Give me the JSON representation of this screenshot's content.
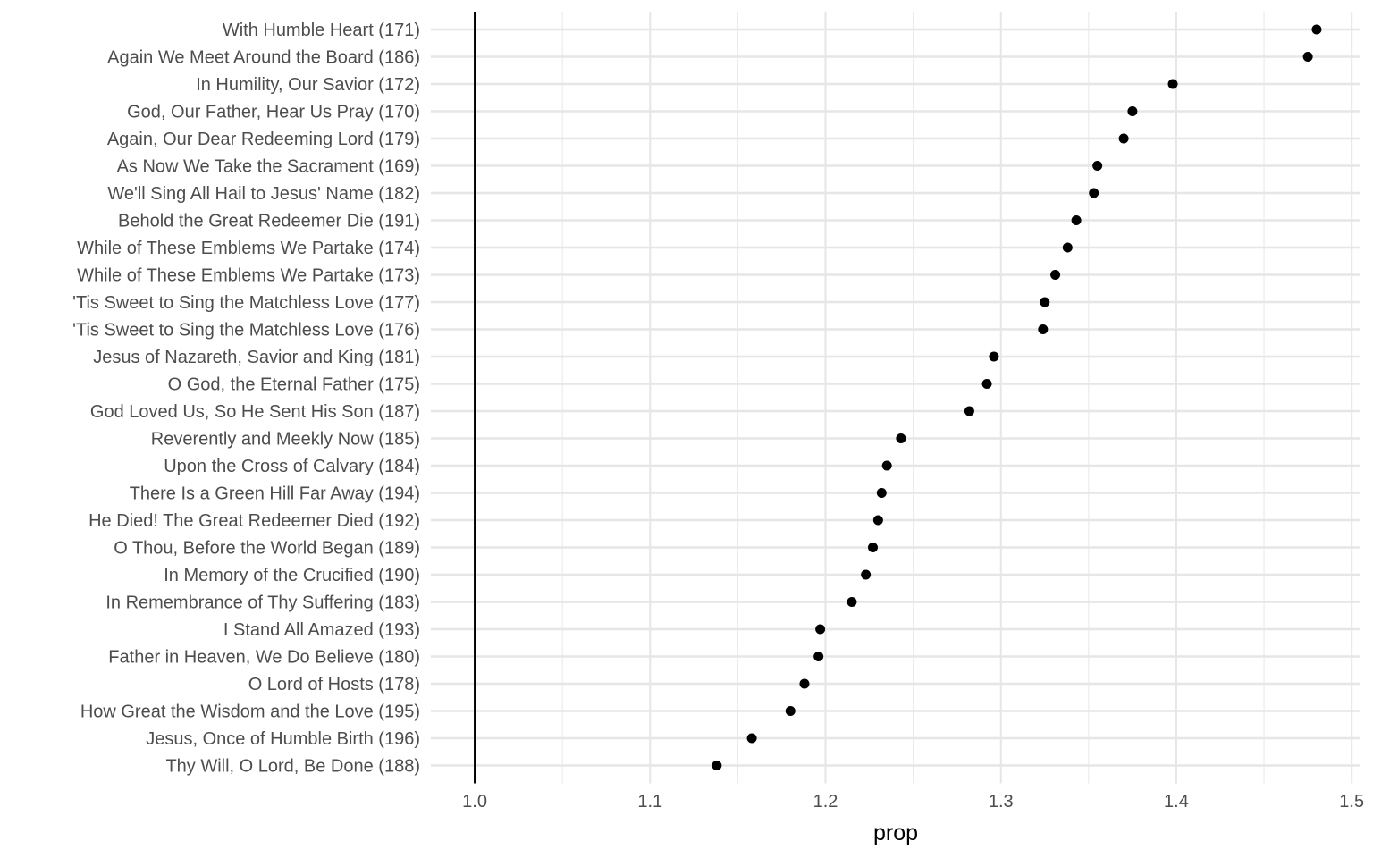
{
  "chart_data": {
    "type": "scatter",
    "title": "",
    "xlabel": "prop",
    "ylabel": "",
    "xlim": [
      0.975,
      1.505
    ],
    "xticks": [
      1.0,
      1.1,
      1.2,
      1.3,
      1.4,
      1.5
    ],
    "xtick_labels": [
      "1.0",
      "1.1",
      "1.2",
      "1.3",
      "1.4",
      "1.5"
    ],
    "reference_line_x": 1.0,
    "grid": true,
    "legend": "none",
    "point_color": "#000000",
    "categories": [
      "With Humble Heart (171)",
      "Again We Meet Around the Board (186)",
      "In Humility, Our Savior (172)",
      "God, Our Father, Hear Us Pray (170)",
      "Again, Our Dear Redeeming Lord (179)",
      "As Now We Take the Sacrament (169)",
      "We'll Sing All Hail to Jesus' Name (182)",
      "Behold the Great Redeemer Die (191)",
      "While of These Emblems We Partake (174)",
      "While of These Emblems We Partake (173)",
      "'Tis Sweet to Sing the Matchless Love (177)",
      "'Tis Sweet to Sing the Matchless Love (176)",
      "Jesus of Nazareth, Savior and King (181)",
      "O God, the Eternal Father (175)",
      "God Loved Us, So He Sent His Son (187)",
      "Reverently and Meekly Now (185)",
      "Upon the Cross of Calvary (184)",
      "There Is a Green Hill Far Away (194)",
      "He Died! The Great Redeemer Died (192)",
      "O Thou, Before the World Began (189)",
      "In Memory of the Crucified (190)",
      "In Remembrance of Thy Suffering (183)",
      "I Stand All Amazed (193)",
      "Father in Heaven, We Do Believe (180)",
      "O Lord of Hosts (178)",
      "How Great the Wisdom and the Love (195)",
      "Jesus, Once of Humble Birth (196)",
      "Thy Will, O Lord, Be Done (188)"
    ],
    "values": [
      1.48,
      1.475,
      1.398,
      1.375,
      1.37,
      1.355,
      1.353,
      1.343,
      1.338,
      1.331,
      1.325,
      1.324,
      1.296,
      1.292,
      1.282,
      1.243,
      1.235,
      1.232,
      1.23,
      1.227,
      1.223,
      1.215,
      1.197,
      1.196,
      1.188,
      1.18,
      1.158,
      1.138
    ]
  }
}
